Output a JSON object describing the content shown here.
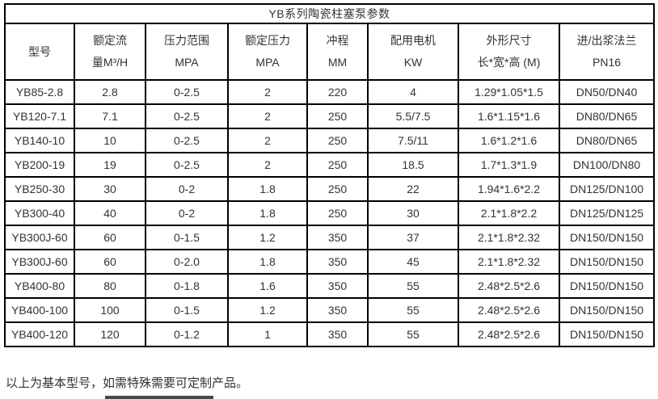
{
  "title": "YB系列陶瓷柱塞泵参数",
  "table": {
    "headers": [
      {
        "lines": [
          "型号"
        ]
      },
      {
        "lines": [
          "额定流",
          "量M³/H"
        ]
      },
      {
        "lines": [
          "压力范围",
          "MPA"
        ]
      },
      {
        "lines": [
          "额定压力",
          "MPA"
        ]
      },
      {
        "lines": [
          "冲程",
          "MM"
        ]
      },
      {
        "lines": [
          "配用电机",
          "KW"
        ]
      },
      {
        "lines": [
          "外形尺寸",
          "长*宽*高 (M)"
        ]
      },
      {
        "lines": [
          "进/出浆法兰",
          "PN16"
        ]
      }
    ],
    "rows": [
      [
        "YB85-2.8",
        "2.8",
        "0-2.5",
        "2",
        "220",
        "4",
        "1.29*1.05*1.5",
        "DN50/DN40"
      ],
      [
        "YB120-7.1",
        "7.1",
        "0-2.5",
        "2",
        "250",
        "5.5/7.5",
        "1.6*1.15*1.6",
        "DN80/DN65"
      ],
      [
        "YB140-10",
        "10",
        "0-2.5",
        "2",
        "250",
        "7.5/11",
        "1.6*1.2*1.6",
        "DN80/DN65"
      ],
      [
        "YB200-19",
        "19",
        "0-2.5",
        "2",
        "250",
        "18.5",
        "1.7*1.3*1.9",
        "DN100/DN80"
      ],
      [
        "YB250-30",
        "30",
        "0-2",
        "1.8",
        "250",
        "22",
        "1.94*1.6*2.2",
        "DN125/DN100"
      ],
      [
        "YB300-40",
        "40",
        "0-2",
        "1.8",
        "250",
        "30",
        "2.1*1.8*2.2",
        "DN125/DN125"
      ],
      [
        "YB300J-60",
        "60",
        "0-1.5",
        "1.2",
        "350",
        "37",
        "2.1*1.8*2.32",
        "DN150/DN150"
      ],
      [
        "YB300J-60",
        "60",
        "0-2.0",
        "1.8",
        "350",
        "45",
        "2.1*1.8*2.32",
        "DN150/DN150"
      ],
      [
        "YB400-80",
        "80",
        "0-1.8",
        "1.6",
        "350",
        "55",
        "2.48*2.5*2.6",
        "DN150/DN150"
      ],
      [
        "YB400-100",
        "100",
        "0-1.5",
        "1.2",
        "350",
        "55",
        "2.48*2.5*2.6",
        "DN150/DN150"
      ],
      [
        "YB400-120",
        "120",
        "0-1.2",
        "1",
        "350",
        "55",
        "2.48*2.5*2.6",
        "DN150/DN150"
      ]
    ]
  },
  "footer": {
    "note": "以上为基本型号，如需特殊需要可定制产品。"
  },
  "colors": {
    "border": "#000000",
    "text": "#333333",
    "background": "#ffffff"
  }
}
